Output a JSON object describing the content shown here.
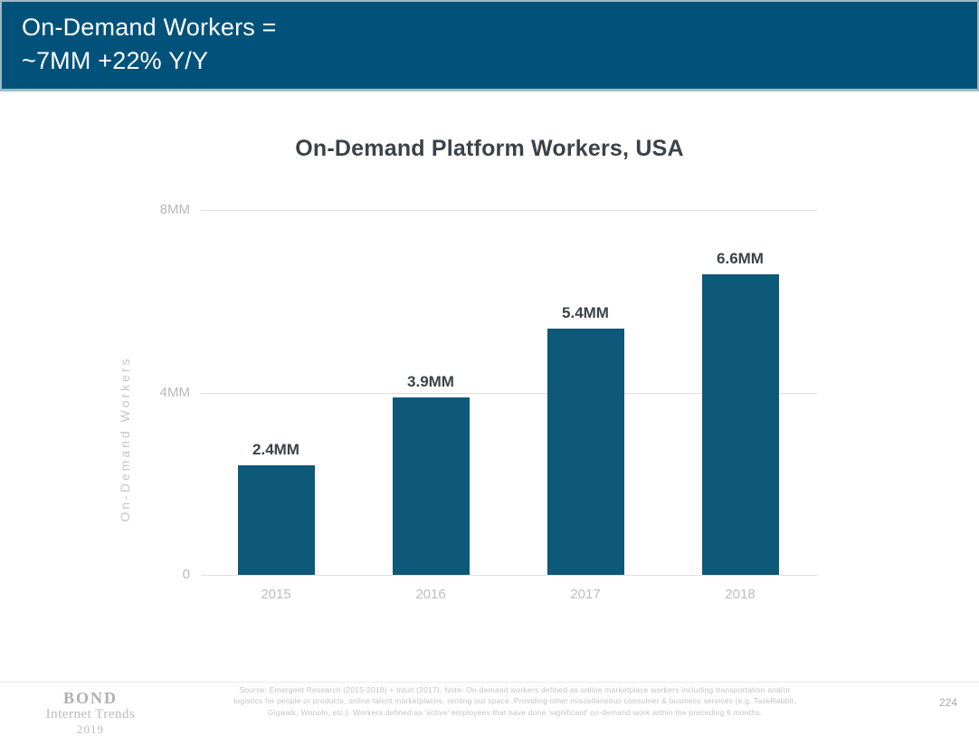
{
  "slide": {
    "header": {
      "title_line1": "On-Demand Workers =",
      "title_line2": "~7MM +22% Y/Y"
    },
    "footer": {
      "brand_name": "BOND",
      "brand_subtitle": "Internet Trends",
      "brand_year": "2019",
      "source_note_lines": [
        "Source:  Emergent Research (2015-2018) + Intuit (2017).  Note: On-demand workers defined as online marketplace workers including transportation and/or",
        "logistics for people or products, online talent marketplaces, renting out space. Providing other miscellaneous consumer & business services (e.g. TaskRabbit,",
        "Gigwalk, Wonolo, etc.). Workers defined as 'active' employees that have done 'significant' on-demand work within the preceding 6 months."
      ],
      "page_number": "224"
    }
  },
  "chart_data": {
    "type": "bar",
    "title": "On-Demand Platform Workers, USA",
    "categories": [
      "2015",
      "2016",
      "2017",
      "2018"
    ],
    "values": [
      2.4,
      3.9,
      5.4,
      6.6
    ],
    "value_labels": [
      "2.4MM",
      "3.9MM",
      "5.4MM",
      "6.6MM"
    ],
    "xlabel": "",
    "ylabel": "On-Demand Workers",
    "ylim": [
      0,
      8
    ],
    "yticks": [
      {
        "value": 0,
        "label": "0"
      },
      {
        "value": 4,
        "label": "4MM"
      },
      {
        "value": 8,
        "label": "8MM"
      }
    ],
    "grid": true,
    "legend": false
  },
  "colors": {
    "header_bg": "#00527A",
    "header_border": "#9FB9C7",
    "bar": "#0E5878",
    "dark_text": "#3B4249",
    "axis_text": "#B9B9B9",
    "gridline": "#E0E0E0"
  }
}
